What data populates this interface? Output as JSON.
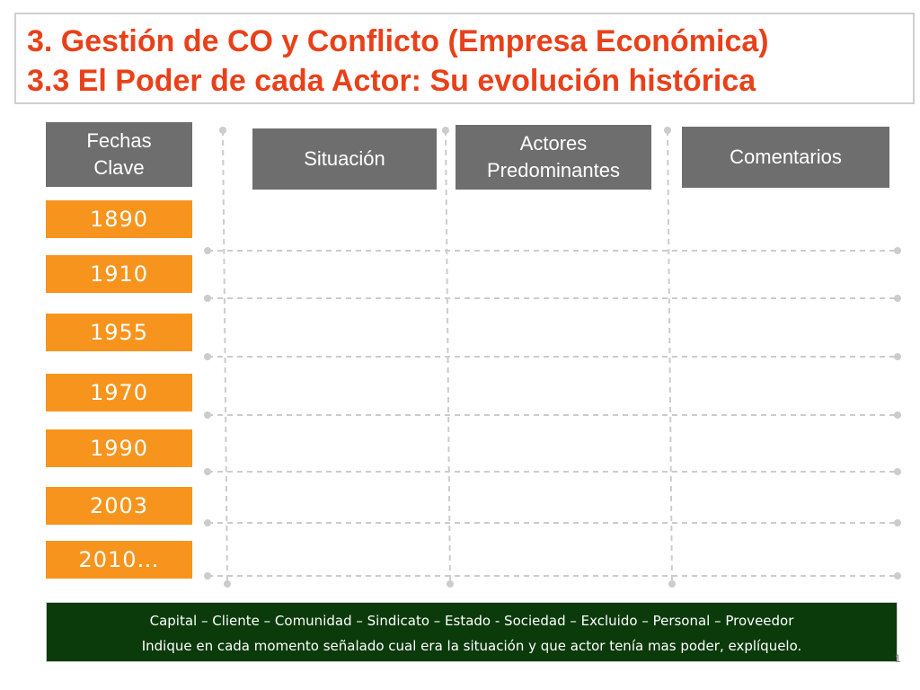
{
  "title": {
    "line1": "3. Gestión de CO y Conflicto (Empresa Económica)",
    "line2": "3.3 El Poder de cada Actor: Su evolución histórica"
  },
  "headers": {
    "fechas": "Fechas\nClave",
    "situacion": "Situación",
    "actores": "Actores\nPredominantes",
    "comentarios": "Comentarios"
  },
  "dates": [
    "1890",
    "1910",
    "1955",
    "1970",
    "1990",
    "2003",
    "2010…"
  ],
  "footer": {
    "line1": "Capital – Cliente  – Comunidad –  Sindicato –  Estado  -  Sociedad – Excluido – Personal – Proveedor",
    "line2": "Indique en cada momento señalado cual era la situación y que actor tenía mas poder, explíquelo."
  },
  "slide_number": "1",
  "colors": {
    "title": "#e8411a",
    "date_box": "#f7941d",
    "header_box": "#6e6e6e",
    "footer_bg": "#0b3a0b"
  }
}
